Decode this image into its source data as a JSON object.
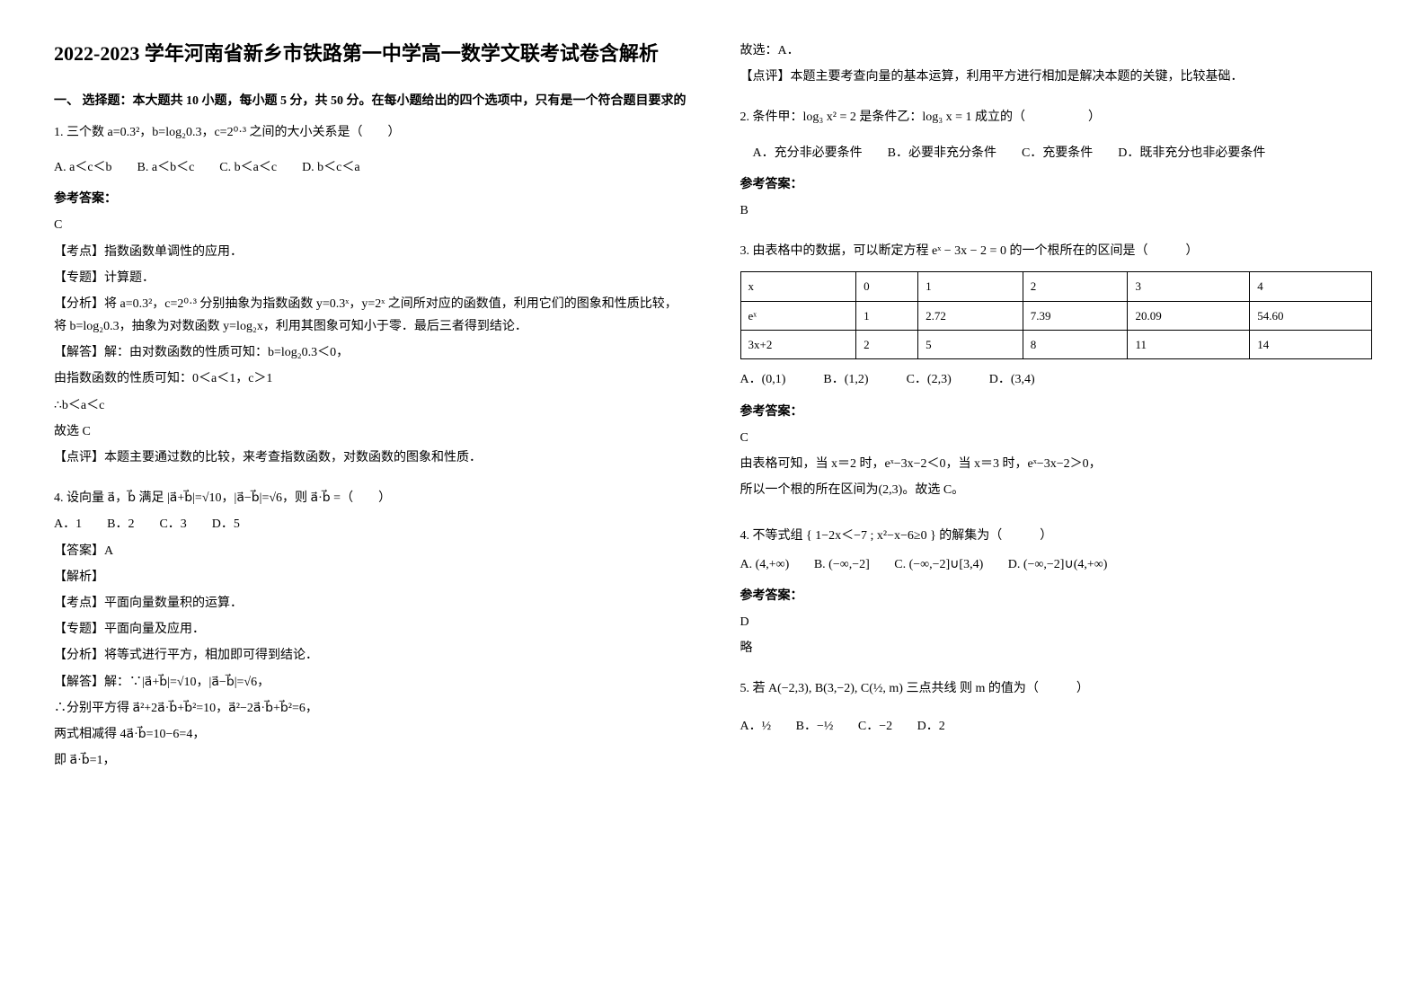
{
  "title": "2022-2023 学年河南省新乡市铁路第一中学高一数学文联考试卷含解析",
  "section1_head": "一、 选择题：本大题共 10 小题，每小题 5 分，共 50 分。在每小题给出的四个选项中，只有是一个符合题目要求的",
  "left": {
    "q1": {
      "stem": "1. 三个数 a=0.3²，b=log₂0.3，c=2⁰·³ 之间的大小关系是（　　）",
      "opts": "A. a＜c＜b　　B. a＜b＜c　　C. b＜a＜c　　D. b＜c＜a",
      "ansLabel": "参考答案：",
      "ans": "C",
      "p1": "【考点】指数函数单调性的应用．",
      "p2": "【专题】计算题．",
      "p3": "【分析】将 a=0.3²，c=2⁰·³ 分别抽象为指数函数 y=0.3ˣ，y=2ˣ 之间所对应的函数值，利用它们的图象和性质比较，将 b=log₂0.3，抽象为对数函数 y=log₂x，利用其图象可知小于零．最后三者得到结论．",
      "p4": "【解答】解：由对数函数的性质可知：b=log₂0.3＜0，",
      "p5": "由指数函数的性质可知：0＜a＜1，c＞1",
      "p6": "∴b＜a＜c",
      "p7": "故选 C",
      "p8": "【点评】本题主要通过数的比较，来考查指数函数，对数函数的图象和性质．"
    },
    "q4v": {
      "stem": "4. 设向量 a⃗，b⃗ 满足 |a⃗+b⃗|=√10，|a⃗−b⃗|=√6，则 a⃗·b⃗ =（　　）",
      "opts": "A．1　　B．2　　C．3　　D．5",
      "p1": "【答案】A",
      "p2": "【解析】",
      "p3": "【考点】平面向量数量积的运算．",
      "p4": "【专题】平面向量及应用．",
      "p5": "【分析】将等式进行平方，相加即可得到结论．",
      "p6": "【解答】解：∵|a⃗+b⃗|=√10，|a⃗−b⃗|=√6，",
      "p7": "∴分别平方得 a⃗²+2a⃗·b⃗+b⃗²=10，a⃗²−2a⃗·b⃗+b⃗²=6，",
      "p8": "两式相减得 4a⃗·b⃗=10−6=4，",
      "p9": "即 a⃗·b⃗=1，"
    }
  },
  "right": {
    "cont1": "故选：A．",
    "cont2": "【点评】本题主要考查向量的基本运算，利用平方进行相加是解决本题的关键，比较基础．",
    "q2": {
      "stem": "2. 条件甲：log₃ x² = 2 是条件乙：log₃ x = 1 成立的（　　　　　）",
      "opts": "A．充分非必要条件　　B．必要非充分条件　　C．充要条件　　D．既非充分也非必要条件",
      "ansLabel": "参考答案：",
      "ans": "B"
    },
    "q3": {
      "stem": "3. 由表格中的数据，可以断定方程 eˣ − 3x − 2 = 0 的一个根所在的区间是（　　　）",
      "table": {
        "rows": [
          [
            "x",
            "0",
            "1",
            "2",
            "3",
            "4"
          ],
          [
            "eˣ",
            "1",
            "2.72",
            "7.39",
            "20.09",
            "54.60"
          ],
          [
            "3x+2",
            "2",
            "5",
            "8",
            "11",
            "14"
          ]
        ],
        "col_count": 6
      },
      "opts": "A．(0,1)　　　B．(1,2)　　　C．(2,3)　　　D．(3,4)",
      "ansLabel": "参考答案：",
      "ans": "C",
      "p1": "由表格可知，当 x＝2 时，eˣ−3x−2＜0，当 x＝3 时，eˣ−3x−2＞0，",
      "p2": "所以一个根的所在区间为(2,3)。故选 C。"
    },
    "q4": {
      "stem": "4. 不等式组 { 1−2x＜−7 ; x²−x−6≥0 } 的解集为（　　　）",
      "optA": "A. (4,+∞)",
      "optB": "B. (−∞,−2]",
      "optC": "C. (−∞,−2]∪[3,4)",
      "optD": "D. (−∞,−2]∪(4,+∞)",
      "ansLabel": "参考答案：",
      "ans": "D",
      "p1": "略"
    },
    "q5": {
      "stem": "5. 若 A(−2,3), B(3,−2), C(½, m) 三点共线 则 m 的值为（　　　）",
      "optA": "A．½",
      "optB": "B．−½",
      "optC": "C．−2",
      "optD": "D．2"
    }
  },
  "styles": {
    "title_fontsize": 22,
    "body_fontsize": 14,
    "table_fontsize": 13,
    "text_color": "#000000",
    "background_color": "#ffffff",
    "border_color": "#000000"
  }
}
